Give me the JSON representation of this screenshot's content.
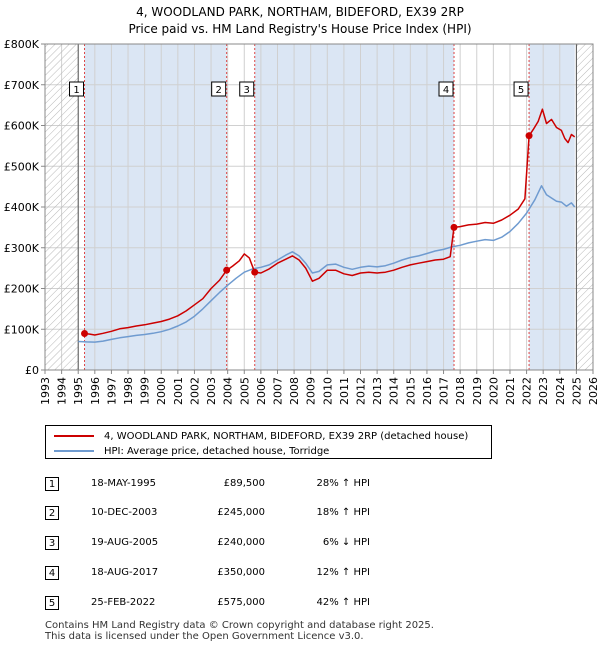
{
  "title_line1": "4, WOODLAND PARK, NORTHAM, BIDEFORD, EX39 2RP",
  "title_line2": "Price paid vs. HM Land Registry's House Price Index (HPI)",
  "colors": {
    "red": "#cc0000",
    "blue": "#6f9bd0",
    "shade": "#dbe6f4",
    "hatch": "#b8b8b8",
    "grid": "#d0d0d0",
    "marker_line": "#dd4444"
  },
  "chart_data": {
    "type": "line",
    "title": "Price paid vs. HM Land Registry's House Price Index (HPI)",
    "xlabel": "",
    "ylabel": "",
    "xlim": [
      1993,
      2026
    ],
    "ylim": [
      0,
      800000
    ],
    "x_ticks": [
      "1993",
      "1994",
      "1995",
      "1996",
      "1997",
      "1998",
      "1999",
      "2000",
      "2001",
      "2002",
      "2003",
      "2004",
      "2005",
      "2006",
      "2007",
      "2008",
      "2009",
      "2010",
      "2011",
      "2012",
      "2013",
      "2014",
      "2015",
      "2016",
      "2017",
      "2018",
      "2019",
      "2020",
      "2021",
      "2022",
      "2023",
      "2024",
      "2025",
      "2026"
    ],
    "y_ticks": [
      {
        "value": 0,
        "label": "£0"
      },
      {
        "value": 100000,
        "label": "£100K"
      },
      {
        "value": 200000,
        "label": "£200K"
      },
      {
        "value": 300000,
        "label": "£300K"
      },
      {
        "value": 400000,
        "label": "£400K"
      },
      {
        "value": 500000,
        "label": "£500K"
      },
      {
        "value": 600000,
        "label": "£600K"
      },
      {
        "value": 700000,
        "label": "£700K"
      },
      {
        "value": 800000,
        "label": "£800K"
      }
    ],
    "shaded_regions": [
      {
        "from": 1995.38,
        "to": 2003.94
      },
      {
        "from": 2005.63,
        "to": 2017.63
      },
      {
        "from": 2022.15,
        "to": 2024.9
      }
    ],
    "hatched_regions": [
      {
        "from": 1993,
        "to": 1995.0
      },
      {
        "from": 2025.0,
        "to": 2026
      }
    ],
    "series": [
      {
        "name": "4, WOODLAND PARK, NORTHAM, BIDEFORD, EX39 2RP (detached house)",
        "color": "#cc0000",
        "points": [
          [
            1995.38,
            89500
          ],
          [
            1995.7,
            88000
          ],
          [
            1996.0,
            86000
          ],
          [
            1996.5,
            90000
          ],
          [
            1997.0,
            95000
          ],
          [
            1997.5,
            101000
          ],
          [
            1998.0,
            104000
          ],
          [
            1998.5,
            108000
          ],
          [
            1999.0,
            111000
          ],
          [
            1999.5,
            115000
          ],
          [
            2000.0,
            119000
          ],
          [
            2000.5,
            125000
          ],
          [
            2001.0,
            133000
          ],
          [
            2001.5,
            145000
          ],
          [
            2002.0,
            160000
          ],
          [
            2002.5,
            175000
          ],
          [
            2003.0,
            200000
          ],
          [
            2003.5,
            220000
          ],
          [
            2003.94,
            245000
          ],
          [
            2004.3,
            255000
          ],
          [
            2004.7,
            268000
          ],
          [
            2005.0,
            285000
          ],
          [
            2005.3,
            275000
          ],
          [
            2005.63,
            240000
          ],
          [
            2006.0,
            238000
          ],
          [
            2006.5,
            248000
          ],
          [
            2007.0,
            262000
          ],
          [
            2007.5,
            272000
          ],
          [
            2007.9,
            280000
          ],
          [
            2008.3,
            270000
          ],
          [
            2008.7,
            250000
          ],
          [
            2009.1,
            218000
          ],
          [
            2009.5,
            225000
          ],
          [
            2010.0,
            245000
          ],
          [
            2010.5,
            245000
          ],
          [
            2011.0,
            236000
          ],
          [
            2011.5,
            232000
          ],
          [
            2012.0,
            238000
          ],
          [
            2012.5,
            240000
          ],
          [
            2013.0,
            238000
          ],
          [
            2013.5,
            240000
          ],
          [
            2014.0,
            245000
          ],
          [
            2014.5,
            252000
          ],
          [
            2015.0,
            258000
          ],
          [
            2015.5,
            262000
          ],
          [
            2016.0,
            266000
          ],
          [
            2016.5,
            270000
          ],
          [
            2017.0,
            272000
          ],
          [
            2017.4,
            278000
          ],
          [
            2017.63,
            350000
          ],
          [
            2018.0,
            352000
          ],
          [
            2018.5,
            356000
          ],
          [
            2019.0,
            358000
          ],
          [
            2019.5,
            362000
          ],
          [
            2020.0,
            360000
          ],
          [
            2020.5,
            368000
          ],
          [
            2021.0,
            380000
          ],
          [
            2021.5,
            395000
          ],
          [
            2021.9,
            420000
          ],
          [
            2022.15,
            575000
          ],
          [
            2022.4,
            590000
          ],
          [
            2022.7,
            610000
          ],
          [
            2022.95,
            640000
          ],
          [
            2023.2,
            605000
          ],
          [
            2023.5,
            615000
          ],
          [
            2023.8,
            595000
          ],
          [
            2024.1,
            588000
          ],
          [
            2024.3,
            568000
          ],
          [
            2024.5,
            558000
          ],
          [
            2024.7,
            578000
          ],
          [
            2024.9,
            572000
          ]
        ]
      },
      {
        "name": "HPI: Average price, detached house, Torridge",
        "color": "#6f9bd0",
        "points": [
          [
            1995.0,
            70000
          ],
          [
            1995.5,
            69000
          ],
          [
            1996.0,
            68500
          ],
          [
            1996.5,
            71000
          ],
          [
            1997.0,
            75000
          ],
          [
            1997.5,
            79000
          ],
          [
            1998.0,
            82000
          ],
          [
            1998.5,
            85000
          ],
          [
            1999.0,
            87000
          ],
          [
            1999.5,
            90000
          ],
          [
            2000.0,
            94000
          ],
          [
            2000.5,
            100000
          ],
          [
            2001.0,
            108000
          ],
          [
            2001.5,
            118000
          ],
          [
            2002.0,
            132000
          ],
          [
            2002.5,
            150000
          ],
          [
            2003.0,
            170000
          ],
          [
            2003.5,
            190000
          ],
          [
            2004.0,
            208000
          ],
          [
            2004.5,
            225000
          ],
          [
            2005.0,
            240000
          ],
          [
            2005.5,
            248000
          ],
          [
            2006.0,
            252000
          ],
          [
            2006.5,
            258000
          ],
          [
            2007.0,
            270000
          ],
          [
            2007.5,
            282000
          ],
          [
            2007.9,
            290000
          ],
          [
            2008.3,
            280000
          ],
          [
            2008.7,
            262000
          ],
          [
            2009.1,
            238000
          ],
          [
            2009.5,
            242000
          ],
          [
            2010.0,
            258000
          ],
          [
            2010.5,
            260000
          ],
          [
            2011.0,
            252000
          ],
          [
            2011.5,
            247000
          ],
          [
            2012.0,
            252000
          ],
          [
            2012.5,
            255000
          ],
          [
            2013.0,
            253000
          ],
          [
            2013.5,
            256000
          ],
          [
            2014.0,
            262000
          ],
          [
            2014.5,
            270000
          ],
          [
            2015.0,
            276000
          ],
          [
            2015.5,
            280000
          ],
          [
            2016.0,
            286000
          ],
          [
            2016.5,
            292000
          ],
          [
            2017.0,
            296000
          ],
          [
            2017.5,
            302000
          ],
          [
            2018.0,
            306000
          ],
          [
            2018.5,
            312000
          ],
          [
            2019.0,
            316000
          ],
          [
            2019.5,
            320000
          ],
          [
            2020.0,
            318000
          ],
          [
            2020.5,
            326000
          ],
          [
            2021.0,
            340000
          ],
          [
            2021.5,
            360000
          ],
          [
            2022.0,
            385000
          ],
          [
            2022.5,
            418000
          ],
          [
            2022.9,
            452000
          ],
          [
            2023.2,
            430000
          ],
          [
            2023.5,
            422000
          ],
          [
            2023.8,
            414000
          ],
          [
            2024.1,
            412000
          ],
          [
            2024.4,
            402000
          ],
          [
            2024.7,
            410000
          ],
          [
            2024.9,
            400000
          ]
        ]
      }
    ],
    "sales": [
      {
        "id": "1",
        "x": 1995.38,
        "price": 89500
      },
      {
        "id": "2",
        "x": 2003.94,
        "price": 245000
      },
      {
        "id": "3",
        "x": 2005.63,
        "price": 240000
      },
      {
        "id": "4",
        "x": 2017.63,
        "price": 350000
      },
      {
        "id": "5",
        "x": 2022.15,
        "price": 575000
      }
    ]
  },
  "legend": {
    "property": "4, WOODLAND PARK, NORTHAM, BIDEFORD, EX39 2RP (detached house)",
    "hpi": "HPI: Average price, detached house, Torridge"
  },
  "transactions": [
    {
      "num": "1",
      "date": "18-MAY-1995",
      "price": "£89,500",
      "hpi": "28% ↑ HPI"
    },
    {
      "num": "2",
      "date": "10-DEC-2003",
      "price": "£245,000",
      "hpi": "18% ↑ HPI"
    },
    {
      "num": "3",
      "date": "19-AUG-2005",
      "price": "£240,000",
      "hpi": "6% ↓ HPI"
    },
    {
      "num": "4",
      "date": "18-AUG-2017",
      "price": "£350,000",
      "hpi": "12% ↑ HPI"
    },
    {
      "num": "5",
      "date": "25-FEB-2022",
      "price": "£575,000",
      "hpi": "42% ↑ HPI"
    }
  ],
  "footer_line1": "Contains HM Land Registry data © Crown copyright and database right 2025.",
  "footer_line2": "This data is licensed under the Open Government Licence v3.0."
}
